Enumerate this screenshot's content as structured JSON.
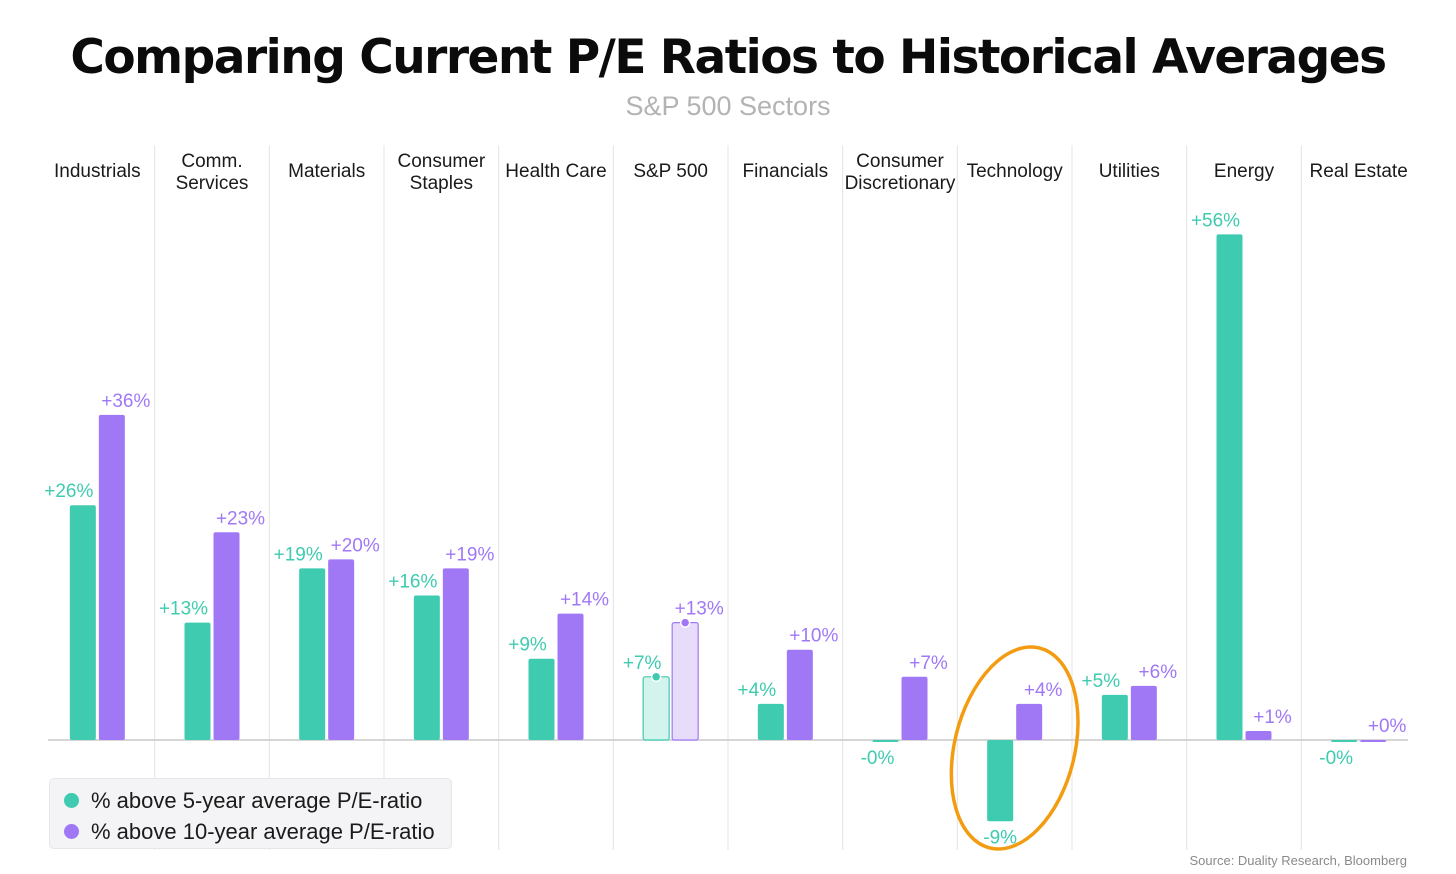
{
  "header": {
    "title": "Comparing Current P/E Ratios to Historical Averages",
    "subtitle": "S&P 500 Sectors"
  },
  "colors": {
    "five_year": "#3ecbaf",
    "ten_year": "#a078f6",
    "highlight": "#f39c12",
    "gridline": "#e4e4e4",
    "baseline": "#c9c9c9"
  },
  "legend": {
    "items": [
      {
        "label": "% above 5-year average P/E-ratio",
        "color": "#3ecbaf"
      },
      {
        "label": "% above 10-year average P/E-ratio",
        "color": "#a078f6"
      }
    ]
  },
  "source": "Source: Duality Research, Bloomberg",
  "chart_data": {
    "type": "bar",
    "title": "Comparing Current P/E Ratios to Historical Averages",
    "subtitle": "S&P 500 Sectors",
    "xlabel": "",
    "ylabel": "",
    "ylim": [
      -12,
      60
    ],
    "grid": "vertical separators between categories",
    "legend_position": "bottom-left",
    "categories": [
      [
        "Industrials"
      ],
      [
        "Comm.",
        "Services"
      ],
      [
        "Materials"
      ],
      [
        "Consumer",
        "Staples"
      ],
      [
        "Health Care"
      ],
      [
        "S&P 500"
      ],
      [
        "Financials"
      ],
      [
        "Consumer",
        "Discretionary"
      ],
      [
        "Technology"
      ],
      [
        "Utilities"
      ],
      [
        "Energy"
      ],
      [
        "Real Estate"
      ]
    ],
    "series": [
      {
        "name": "% above 5-year average P/E-ratio",
        "values": [
          26,
          13,
          19,
          16,
          9,
          7,
          4,
          -0.2,
          -9,
          5,
          56,
          -0.2
        ],
        "labels": [
          "+26%",
          "+13%",
          "+19%",
          "+16%",
          "+9%",
          "+7%",
          "+4%",
          "-0%",
          "-9%",
          "+5%",
          "+56%",
          "-0%"
        ]
      },
      {
        "name": "% above 10-year average P/E-ratio",
        "values": [
          36,
          23,
          20,
          19,
          14,
          13,
          10,
          7,
          4,
          6,
          1,
          0
        ],
        "labels": [
          "+36%",
          "+23%",
          "+20%",
          "+19%",
          "+14%",
          "+13%",
          "+10%",
          "+7%",
          "+4%",
          "+6%",
          "+1%",
          "+0%"
        ]
      }
    ],
    "benchmark_category": "S&P 500",
    "annotations": [
      {
        "type": "circle",
        "category": "Technology"
      }
    ]
  }
}
